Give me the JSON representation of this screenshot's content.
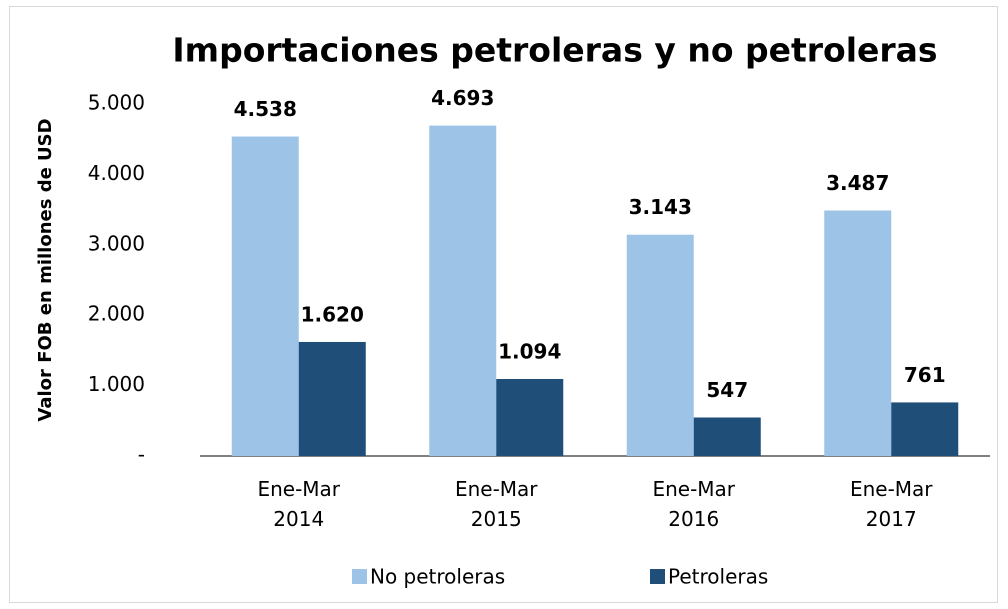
{
  "chart_data": {
    "type": "bar",
    "title": "Importaciones petroleras y no petroleras",
    "y_label": "Valor FOB en millones de USD",
    "categories": [
      "Ene-Mar 2014",
      "Ene-Mar 2015",
      "Ene-Mar 2016",
      "Ene-Mar 2017"
    ],
    "series": [
      {
        "name": "No petroleras",
        "color": "#9dc3e6",
        "values": [
          4538,
          4693,
          3143,
          3487
        ],
        "value_labels": [
          "4.538",
          "4.693",
          "3.143",
          "3.487"
        ]
      },
      {
        "name": "Petroleras",
        "color": "#1f4e79",
        "values": [
          1620,
          1094,
          547,
          761
        ],
        "value_labels": [
          "1.620",
          "1.094",
          "547",
          "761"
        ]
      }
    ],
    "ylim": [
      0,
      5000
    ],
    "yticks": [
      {
        "value": 0,
        "label": "-"
      },
      {
        "value": 1000,
        "label": "1.000"
      },
      {
        "value": 2000,
        "label": "2.000"
      },
      {
        "value": 3000,
        "label": "3.000"
      },
      {
        "value": 4000,
        "label": "4.000"
      },
      {
        "value": 5000,
        "label": "5.000"
      }
    ],
    "legend": "bottom"
  }
}
